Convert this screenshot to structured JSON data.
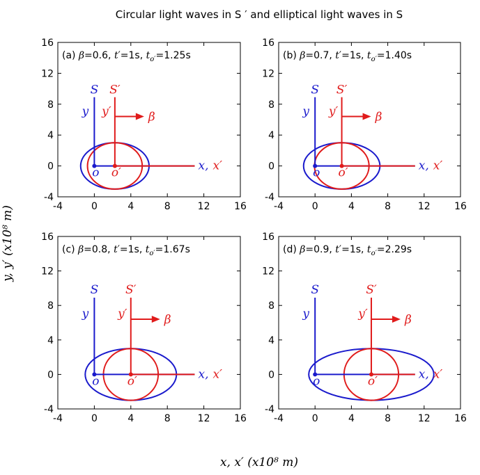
{
  "chart_data": {
    "type": "scatter",
    "title": "Circular light waves in S ′ and elliptical light waves in S",
    "xlabel": "x, x′ (x10⁸ m)",
    "ylabel": "y, y′ (x10⁸ m)",
    "xlim": [
      -4,
      16
    ],
    "ylim": [
      -4,
      16
    ],
    "xticks": [
      -4,
      0,
      4,
      8,
      12,
      16
    ],
    "yticks": [
      -4,
      0,
      4,
      8,
      12,
      16
    ],
    "grid": false,
    "colors": {
      "S_frame": "#1a1acc",
      "S_prime_frame": "#e01b1b",
      "circle": "#e01b1b",
      "ellipse": "#1a1acc"
    },
    "frame_labels": {
      "S": "S",
      "S_prime": "S′",
      "y": "y",
      "y_prime": "y′",
      "x_pair_x": "x,",
      "x_pair_xprime": "x′",
      "origin": "o",
      "origin_prime": "o′",
      "beta": "β"
    },
    "panels": [
      {
        "label": "(a)",
        "beta": 0.6,
        "t_prime": "1s",
        "t_oprime": "1.25s",
        "circle": {
          "cx": 2.25,
          "cy": 0,
          "r": 3
        },
        "ellipse": {
          "cx": 2.25,
          "cy": 0,
          "a": 3.75,
          "b": 3
        },
        "caption": {
          "a": "(a) ",
          "beta_sym": "β",
          "eq1": "=0.6, ",
          "t": "t",
          "tp_rest": "′=1s, ",
          "to": "t",
          "sub": "o′",
          "eq2": "=1.25s"
        }
      },
      {
        "label": "(b)",
        "beta": 0.7,
        "t_prime": "1s",
        "t_oprime": "1.40s",
        "circle": {
          "cx": 2.94,
          "cy": 0,
          "r": 3
        },
        "ellipse": {
          "cx": 2.94,
          "cy": 0,
          "a": 4.2,
          "b": 3
        },
        "caption": {
          "a": "(b) ",
          "beta_sym": "β",
          "eq1": "=0.7, ",
          "t": "t",
          "tp_rest": "′=1s, ",
          "to": "t",
          "sub": "o′",
          "eq2": "=1.40s"
        }
      },
      {
        "label": "(c)",
        "beta": 0.8,
        "t_prime": "1s",
        "t_oprime": "1.67s",
        "circle": {
          "cx": 4.0,
          "cy": 0,
          "r": 3
        },
        "ellipse": {
          "cx": 4.0,
          "cy": 0,
          "a": 5.0,
          "b": 3
        },
        "caption": {
          "a": "(c) ",
          "beta_sym": "β",
          "eq1": "=0.8, ",
          "t": "t",
          "tp_rest": "′=1s, ",
          "to": "t",
          "sub": "o′",
          "eq2": "=1.67s"
        }
      },
      {
        "label": "(d)",
        "beta": 0.9,
        "t_prime": "1s",
        "t_oprime": "2.29s",
        "circle": {
          "cx": 6.19,
          "cy": 0,
          "r": 3
        },
        "ellipse": {
          "cx": 6.19,
          "cy": 0,
          "a": 6.88,
          "b": 3
        },
        "caption": {
          "a": "(d) ",
          "beta_sym": "β",
          "eq1": "=0.9, ",
          "t": "t",
          "tp_rest": "′=1s, ",
          "to": "t",
          "sub": "o′",
          "eq2": "=2.29s"
        }
      }
    ]
  }
}
